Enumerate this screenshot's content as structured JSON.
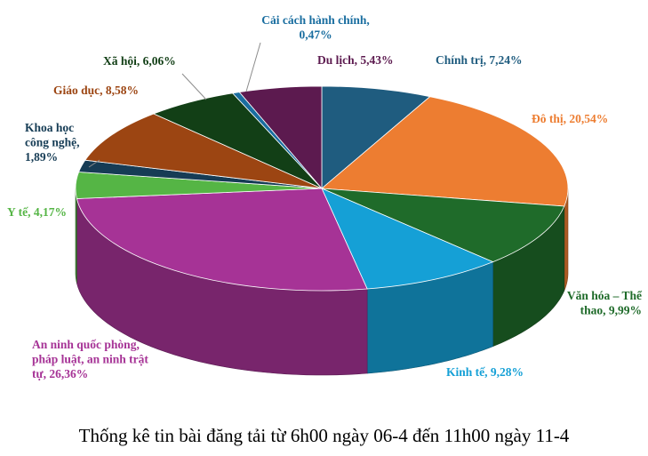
{
  "chart_data": {
    "type": "pie",
    "title": "",
    "caption": "Thống kê tin bài đăng tải từ 6h00 ngày 06-4 đến 11h00 ngày 11-4",
    "slices": [
      {
        "name": "Chính trị",
        "value": 7.24,
        "color": "#1f5c7f",
        "label_lines": [
          "Chính trị, 7,24%"
        ]
      },
      {
        "name": "Đô thị",
        "value": 20.54,
        "color": "#ed7d31",
        "label_lines": [
          "Đô thị, 20,54%"
        ]
      },
      {
        "name": "Văn hóa – Thể thao",
        "value": 9.99,
        "color": "#1f6b2a",
        "label_lines": [
          "Văn hóa – Thể",
          "thao, 9,99%"
        ]
      },
      {
        "name": "Kinh tế",
        "value": 9.28,
        "color": "#15a0d6",
        "label_lines": [
          "Kinh tế, 9,28%"
        ]
      },
      {
        "name": "An ninh quốc phòng, pháp luật, an ninh trật tự",
        "value": 26.36,
        "color": "#a63396",
        "label_lines": [
          "An ninh quốc phòng,",
          "pháp luật, an ninh trật",
          "tự, 26,36%"
        ]
      },
      {
        "name": "Y tế",
        "value": 4.17,
        "color": "#55b545",
        "label_lines": [
          "Y tế, 4,17%"
        ]
      },
      {
        "name": "Khoa học công nghệ",
        "value": 1.89,
        "color": "#163c55",
        "label_lines": [
          "Khoa học",
          "công nghệ,",
          "1,89%"
        ]
      },
      {
        "name": "Giáo dục",
        "value": 8.58,
        "color": "#9c4512",
        "label_lines": [
          "Giáo dục, 8,58%"
        ]
      },
      {
        "name": "Xã hội",
        "value": 6.06,
        "color": "#123f16",
        "label_lines": [
          "Xã hội, 6,06%"
        ]
      },
      {
        "name": "Cải cách hành chính",
        "value": 0.47,
        "color": "#1a6ea0",
        "label_lines": [
          "Cải cách hành chính,",
          "0,47%"
        ]
      },
      {
        "name": "Du lịch",
        "value": 5.43,
        "color": "#5c1a4f",
        "label_lines": [
          "Du lịch, 5,43%"
        ]
      }
    ]
  }
}
